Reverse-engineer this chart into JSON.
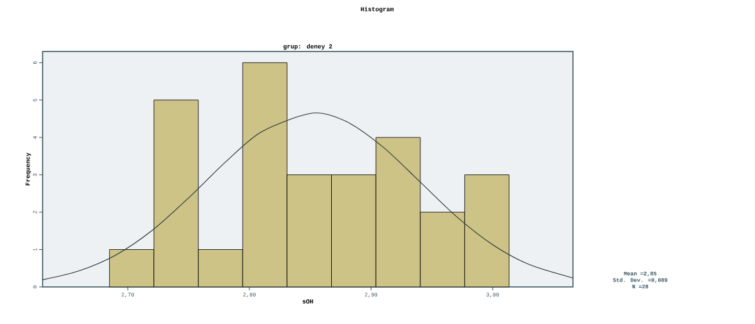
{
  "chart_data": {
    "type": "histogram",
    "title": "Histogram",
    "subtitle": "grup: deney 2",
    "xlabel": "sOH",
    "ylabel": "Frequency",
    "bins": [
      2.685,
      2.7215,
      2.758,
      2.7945,
      2.831,
      2.8675,
      2.904,
      2.9405,
      2.977,
      3.0135
    ],
    "values": [
      1,
      5,
      1,
      6,
      3,
      3,
      4,
      2,
      3
    ],
    "color": "#cdc387",
    "series": [
      {
        "type": "line",
        "color": "#2b3a3a",
        "x": [
          2.63,
          2.66,
          2.69,
          2.72,
          2.75,
          2.78,
          2.81,
          2.852,
          2.88,
          2.91,
          2.94,
          2.97,
          3.0,
          3.03,
          3.066
        ],
        "values": [
          0.19,
          0.43,
          0.85,
          1.51,
          2.38,
          3.33,
          4.15,
          4.65,
          4.42,
          3.74,
          2.82,
          1.89,
          1.13,
          0.6,
          0.24
        ]
      }
    ],
    "xlim": [
      2.63,
      3.066
    ],
    "ylim": [
      0,
      6.3
    ],
    "xticks": [
      {
        "value": 2.7,
        "label": "2,70"
      },
      {
        "value": 2.8,
        "label": "2,80"
      },
      {
        "value": 2.9,
        "label": "2,90"
      },
      {
        "value": 3.0,
        "label": "3,00"
      }
    ],
    "yticks": [
      0,
      1,
      2,
      3,
      4,
      5,
      6
    ],
    "annotations": [
      "Mean =2,85",
      "Std. Dev. =0,089",
      "N =28"
    ]
  }
}
